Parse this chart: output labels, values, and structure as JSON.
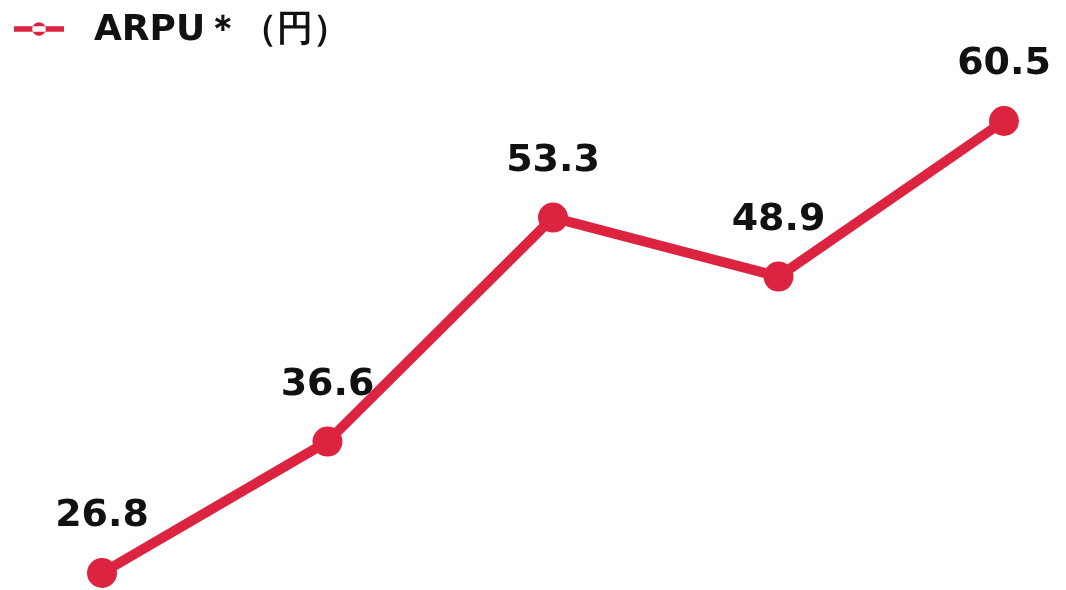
{
  "chart_data": {
    "type": "line",
    "categories": [
      null,
      null,
      null,
      null,
      null
    ],
    "series": [
      {
        "name": "ARPU＊（円）",
        "color": "#dc2440",
        "values": [
          26.8,
          36.6,
          53.3,
          48.9,
          60.5
        ]
      }
    ],
    "data_labels": true,
    "legend": "top left",
    "marker": "circle",
    "line_style": "solid",
    "tick_labels": false
  }
}
